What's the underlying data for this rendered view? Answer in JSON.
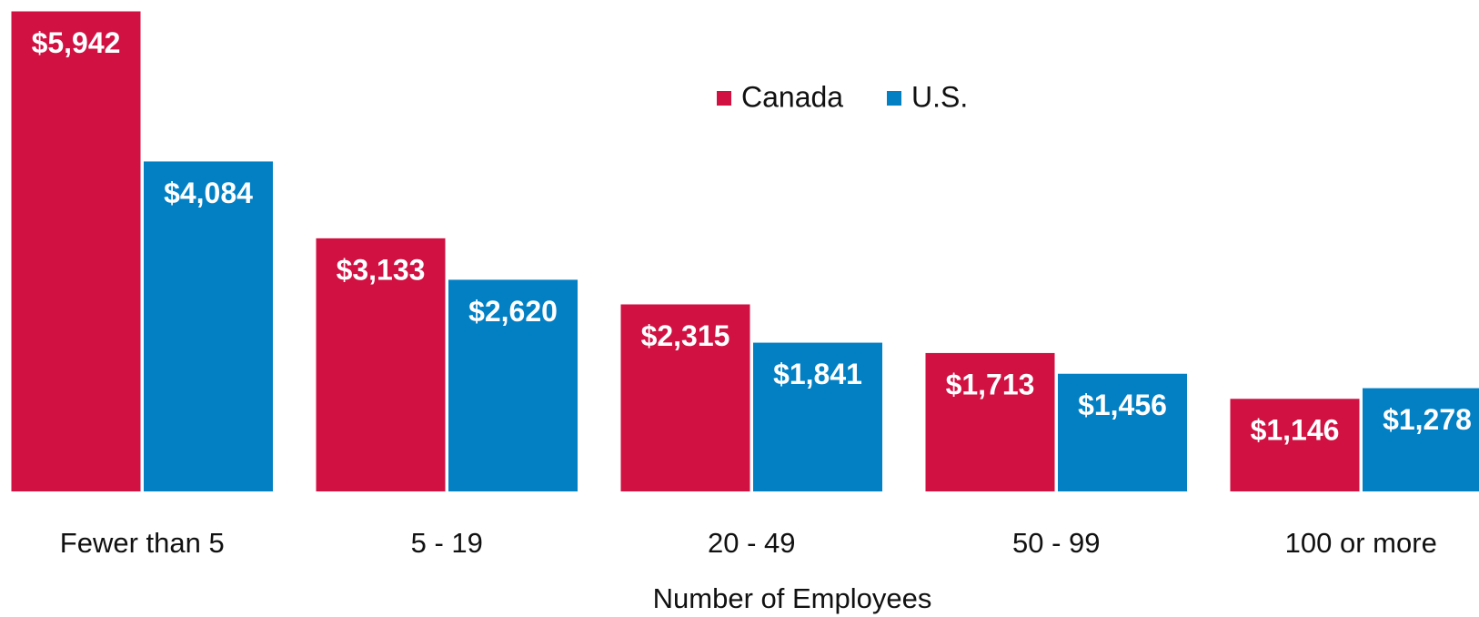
{
  "chart_data": {
    "type": "bar",
    "x_label": "Number of Employees",
    "categories": [
      "Fewer than 5",
      "5 - 19",
      "20 - 49",
      "50 - 99",
      "100 or more"
    ],
    "series": [
      {
        "name": "Canada",
        "color": "#d01142",
        "values": [
          5942,
          3133,
          2315,
          1713,
          1146
        ],
        "value_labels": [
          "$5,942",
          "$3,133",
          "$2,315",
          "$1,713",
          "$1,146"
        ]
      },
      {
        "name": "U.S.",
        "color": "#0380c4",
        "values": [
          4084,
          2620,
          1841,
          1456,
          1278
        ],
        "value_labels": [
          "$4,084",
          "$2,620",
          "$1,841",
          "$1,456",
          "$1,278"
        ]
      }
    ],
    "legend": "top"
  }
}
